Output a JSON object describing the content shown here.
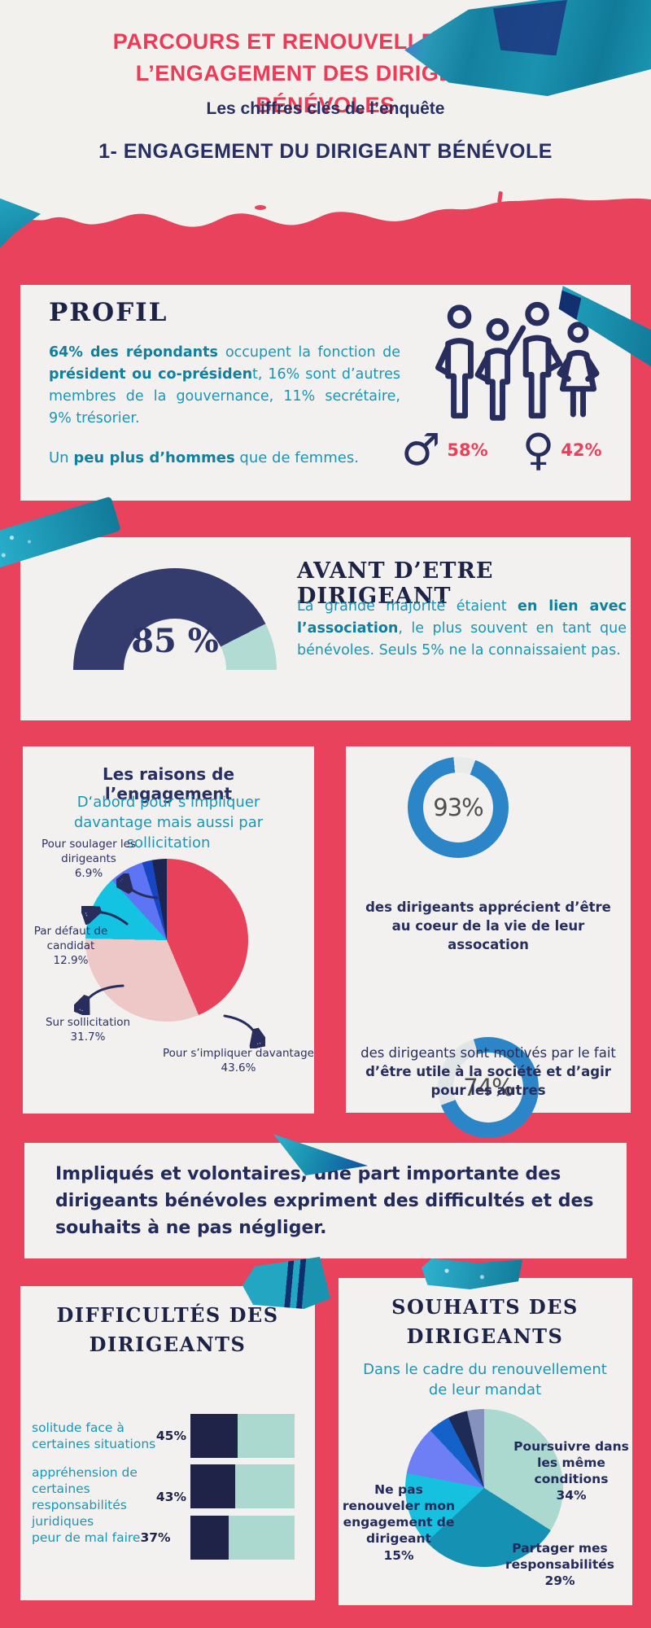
{
  "page": {
    "title": "PARCOURS ET RENOUVELLEMENT DE L’ENGAGEMENT DES DIRIGEANTS BÉNÉVOLES",
    "subtitle": "Les chiffres clés de l’enquête",
    "section_title": "1- ENGAGEMENT DU DIRIGEANT BÉNÉVOLE"
  },
  "colors": {
    "background": "#f2f1ee",
    "band_red": "#e9425c",
    "title_red": "#ee3a57",
    "heading_navy": "#1d2347",
    "body_navy": "#272e5e",
    "teal_text": "#1a96b5",
    "mint": "#abd9d0",
    "donut_blue": "#2c85c7",
    "tape_teal": "#1a93b0"
  },
  "profil": {
    "heading": "PROFIL",
    "body": [
      {
        "t": "64% des répondants ",
        "b": 1
      },
      {
        "t": "occupent la fonction de "
      },
      {
        "t": "président ou co-présiden",
        "b": 1
      },
      {
        "t": "t, 16% sont d’autres membres de la gouvernance, 11% secrétaire, 9% trésorier."
      }
    ],
    "gender_note": [
      {
        "t": "Un "
      },
      {
        "t": "peu plus d’hommes",
        "b": 1
      },
      {
        "t": " que de femmes."
      }
    ],
    "male_symbol": "♂",
    "male_pct": "58%",
    "female_symbol": "♀",
    "female_pct": "42%"
  },
  "avant": {
    "heading": "AVANT D’ETRE DIRIGEANT",
    "body": [
      {
        "t": "La grande majorité étaient "
      },
      {
        "t": "en lien avec l’association",
        "b": 1
      },
      {
        "t": ", le plus souvent en tant que bénévoles. Seuls 5% ne la connaissaient pas."
      }
    ]
  },
  "raisons": {
    "heading": "Les raisons de l’engagement",
    "subtitle": "D‘abord pour s‘impliquer davantage mais aussi par sollicitation"
  },
  "stats": {
    "s93_text": [
      {
        "t": "des dirigeants apprécient d’être au coeur de la vie de leur assocation",
        "b": 1
      }
    ],
    "s74_text": [
      {
        "t": "des dirigeants  sont motivés par le fait "
      },
      {
        "t": "d’être utile à la société et d’agir pour les autres",
        "b": 1
      }
    ]
  },
  "message": {
    "text": "Impliqués et volontaires, une part importante des dirigeants bénévoles expriment des difficultés et des souhaits à ne pas négliger."
  },
  "difficultes": {
    "heading": "DIFFICULTÉS DES DIRIGEANTS",
    "rows": [
      [
        {
          "t": "solitude face à certaines situations "
        },
        {
          "t": "45%",
          "b": 1
        }
      ],
      [
        {
          "t": "appréhension de certaines responsabilités juridiques "
        },
        {
          "t": "43%",
          "b": 1
        }
      ],
      [
        {
          "t": "peur de mal faire "
        },
        {
          "t": "37%",
          "b": 1
        }
      ]
    ]
  },
  "souhaits": {
    "heading": "SOUHAITS  DES DIRIGEANTS",
    "subtitle": "Dans le cadre du renouvellement de leur mandat"
  },
  "chart_data": [
    {
      "id": "gauge-avant",
      "type": "gauge",
      "title": "Avant d’être dirigeant : en lien avec l’association",
      "value": 85,
      "display": "85 %",
      "color": "#343c6e",
      "track": "#b2dcd3",
      "range": [
        0,
        100
      ]
    },
    {
      "id": "pie-raisons",
      "type": "pie",
      "title": "Les raisons de l’engagement",
      "slices": [
        {
          "label": "Pour s’impliquer davantage",
          "display": "43.6%",
          "value": 43.6,
          "color": "#e8415c"
        },
        {
          "label": "Sur sollicitation",
          "display": "31.7%",
          "value": 31.7,
          "color": "#edc8c6"
        },
        {
          "label": "Par défaut de candidat",
          "display": "12.9%",
          "value": 12.9,
          "color": "#14c2e2"
        },
        {
          "label": "Pour soulager les dirigeants",
          "display": "6.9%",
          "value": 6.9,
          "color": "#5d75f4"
        },
        {
          "label": "",
          "display": "",
          "value": 2.0,
          "color": "#1746c0"
        },
        {
          "label": "",
          "display": "",
          "value": 2.9,
          "color": "#1c2451"
        }
      ]
    },
    {
      "id": "donut-93",
      "type": "donut",
      "title": "apprécient d’être au coeur de la vie de leur assocation",
      "value": 93,
      "display": "93%",
      "color": "#2c85c7",
      "track": "#e9ebeb",
      "start_deg": 20
    },
    {
      "id": "donut-74",
      "type": "donut",
      "title": "motivés par le fait d’être utile à la société",
      "value": 74,
      "display": "74%",
      "color": "#2c85c7",
      "track": "#e2e5e6",
      "start_deg": -17
    },
    {
      "id": "bars-difficultes",
      "type": "bar",
      "title": "Difficultés des dirigeants",
      "categories": [
        "solitude face à certaines situations",
        "appréhension de certaines responsabilités juridiques",
        "peur de mal faire"
      ],
      "values": [
        45,
        43,
        37
      ],
      "max": 100,
      "fill": "#1f2348",
      "track": "#abd9d0"
    },
    {
      "id": "pie-souhaits",
      "type": "pie",
      "title": "Souhaits des dirigeants",
      "slices": [
        {
          "label": "Poursuivre dans les même conditions",
          "display": "34%",
          "value": 34,
          "color": "#abd9d0"
        },
        {
          "label": "Partager mes responsabilités",
          "display": "29%",
          "value": 29,
          "color": "#1591b3"
        },
        {
          "label": "Ne pas renouveler mon engagement de dirigeant",
          "display": "15%",
          "value": 15,
          "color": "#16c1e0"
        },
        {
          "label": "",
          "display": "",
          "value": 10,
          "color": "#6e7ff6"
        },
        {
          "label": "",
          "display": "",
          "value": 4.5,
          "color": "#1561ca"
        },
        {
          "label": "",
          "display": "",
          "value": 4,
          "color": "#1d2b56"
        },
        {
          "label": "",
          "display": "",
          "value": 3.5,
          "color": "#8492bd"
        }
      ]
    }
  ]
}
